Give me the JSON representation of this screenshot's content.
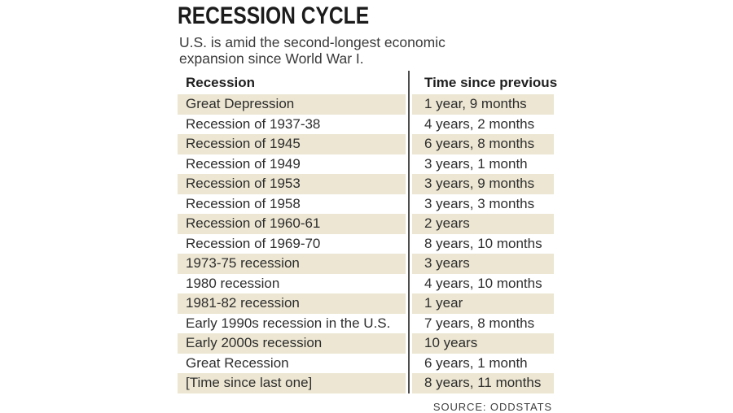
{
  "chart_data": {
    "type": "table",
    "title": "RECESSION CYCLE",
    "subtitle": "U.S. is amid the second-longest economic expansion since World War I.",
    "columns": [
      "Recession",
      "Time since previous"
    ],
    "rows": [
      [
        "Great Depression",
        "1 year, 9 months"
      ],
      [
        "Recession of 1937-38",
        "4 years, 2 months"
      ],
      [
        "Recession of 1945",
        "6 years, 8 months"
      ],
      [
        "Recession of 1949",
        "3 years, 1 month"
      ],
      [
        "Recession of 1953",
        "3 years, 9 months"
      ],
      [
        "Recession of 1958",
        "3 years, 3 months"
      ],
      [
        "Recession of 1960-61",
        "2 years"
      ],
      [
        "Recession of 1969-70",
        "8 years, 10 months"
      ],
      [
        "1973-75 recession",
        "3 years"
      ],
      [
        "1980 recession",
        "4 years, 10 months"
      ],
      [
        "1981-82 recession",
        "1 year"
      ],
      [
        "Early 1990s recession in the U.S.",
        "7 years, 8 months"
      ],
      [
        "Early 2000s recession",
        "10 years"
      ],
      [
        "Great Recession",
        "6 years, 1 month"
      ],
      [
        "[Time since last one]",
        "8 years, 11 months"
      ]
    ],
    "source": "SOURCE: ODDSTATS",
    "layout": {
      "alternating_row_color": "#ece6d2",
      "divider_color": "#4c4c4c",
      "highlighted_rows": "even indices (0,2,4,...)"
    }
  },
  "header": {
    "title": "RECESSION CYCLE",
    "subtitle_line1": "U.S. is amid the second-longest economic",
    "subtitle_line2": "expansion since World War I."
  },
  "footer": {
    "source": "SOURCE: ODDSTATS"
  }
}
